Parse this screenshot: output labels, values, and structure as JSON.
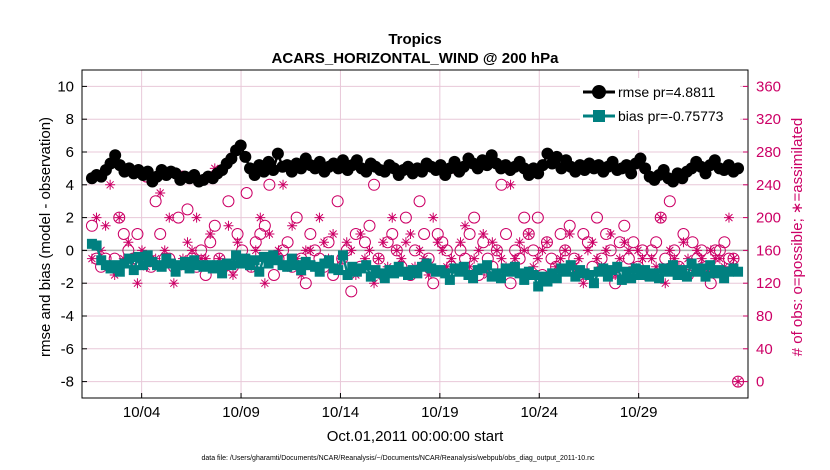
{
  "chart_data": {
    "type": "line",
    "title_line1": "Tropics",
    "title_line2": "ACARS_HORIZONTAL_WIND @ 200 hPa",
    "xlabel": "Oct.01,2011 00:00:00 start",
    "ylabel_left": "rmse and bias (model - observation)",
    "ylabel_right": "# of obs: o=possible; ∗=assimilated",
    "footnote": "data file: /Users/gharamti/Documents/NCAR/Reanalysis/~/Documents/NCAR/Reanalysis/webpub/obs_diag_output_2011-10.nc",
    "x_range_days": [
      0,
      33.5
    ],
    "x_ticks": [
      {
        "day": 3,
        "label": "10/04"
      },
      {
        "day": 8,
        "label": "10/09"
      },
      {
        "day": 13,
        "label": "10/14"
      },
      {
        "day": 18,
        "label": "10/19"
      },
      {
        "day": 23,
        "label": "10/24"
      },
      {
        "day": 28,
        "label": "10/29"
      }
    ],
    "y_left_range": [
      -9,
      11
    ],
    "y_left_ticks": [
      "10",
      "8",
      "6",
      "4",
      "2",
      "0",
      "-2",
      "-4",
      "-6",
      "-8"
    ],
    "y_right_range": [
      -20,
      380
    ],
    "y_right_ticks": [
      "360",
      "320",
      "280",
      "240",
      "200",
      "160",
      "120",
      "80",
      "40",
      "0"
    ],
    "legend": [
      {
        "label": "rmse pr=4.8811"
      },
      {
        "label": "bias pr=-0.75773"
      }
    ],
    "colors": {
      "rmse": "#000000",
      "bias": "#008080",
      "obs": "#cc0066",
      "grid": "#e8c8d8",
      "zero": "#b0b0b0"
    },
    "series": [
      {
        "name": "rmse",
        "values": [
          4.4,
          4.6,
          4.5,
          4.9,
          5.3,
          5.8,
          5.2,
          4.8,
          5.0,
          4.7,
          4.9,
          4.6,
          4.8,
          4.2,
          4.5,
          4.9,
          4.6,
          4.8,
          4.7,
          4.3,
          4.5,
          4.4,
          4.6,
          4.2,
          4.3,
          4.5,
          4.4,
          4.7,
          4.9,
          5.3,
          5.6,
          6.1,
          6.4,
          5.7,
          5.0,
          4.6,
          5.2,
          4.8,
          5.4,
          4.9,
          5.9,
          5.1,
          5.2,
          4.8,
          5.3,
          5.0,
          5.6,
          5.2,
          5.0,
          5.4,
          4.8,
          5.1,
          5.3,
          5.0,
          5.5,
          4.9,
          5.2,
          5.5,
          5.0,
          4.8,
          5.3,
          5.1,
          4.9,
          4.8,
          5.2,
          5.0,
          4.6,
          4.9,
          5.1,
          4.7,
          5.0,
          4.8,
          5.3,
          5.1,
          4.9,
          5.2,
          4.6,
          5.0,
          5.4,
          4.8,
          5.1,
          5.6,
          5.3,
          5.0,
          5.5,
          5.2,
          5.8,
          5.3,
          5.0,
          5.2,
          4.9,
          5.1,
          5.4,
          5.0,
          4.6,
          5.0,
          4.7,
          5.2,
          5.9,
          5.3,
          5.7,
          5.0,
          5.5,
          5.1,
          4.8,
          5.2,
          4.9,
          5.3,
          5.0,
          5.2,
          4.8,
          5.1,
          5.4,
          4.9,
          5.0,
          5.2,
          4.7,
          5.3,
          5.6,
          5.0,
          4.5,
          4.3,
          4.6,
          4.9,
          4.4,
          4.2,
          4.7,
          4.4,
          4.8,
          5.0,
          5.4,
          5.1,
          4.7,
          5.2,
          5.5,
          5.0,
          4.9,
          5.2,
          4.8,
          5.0
        ]
      },
      {
        "name": "bias",
        "values": [
          0.4,
          0.3,
          -0.6,
          -0.9,
          -1.1,
          -0.9,
          -1.3,
          -0.8,
          -0.5,
          -1.2,
          -0.4,
          -0.9,
          -0.3,
          -0.7,
          -0.9,
          -1.0,
          -0.5,
          -0.8,
          -1.3,
          -0.9,
          -0.7,
          -1.1,
          -0.6,
          -0.9,
          -1.0,
          -0.9,
          -1.1,
          -0.9,
          -1.4,
          -0.8,
          -0.9,
          -0.3,
          -0.8,
          -0.5,
          -0.9,
          -0.6,
          -1.3,
          -0.4,
          -0.8,
          -0.3,
          -0.6,
          -0.9,
          -1.0,
          -0.5,
          -0.9,
          -1.2,
          -0.7,
          -0.9,
          -1.0,
          -1.3,
          -0.8,
          -0.6,
          -1.1,
          -1.2,
          -0.3,
          -1.5,
          -1.0,
          -1.3,
          -1.1,
          -0.9,
          -1.6,
          -1.2,
          -1.4,
          -1.7,
          -1.2,
          -1.4,
          -1.0,
          -1.3,
          -1.5,
          -1.2,
          -1.4,
          -1.0,
          -0.8,
          -1.1,
          -1.3,
          -1.2,
          -1.4,
          -1.8,
          -1.1,
          -1.3,
          -1.0,
          -1.5,
          -1.7,
          -1.2,
          -1.1,
          -0.9,
          -1.6,
          -1.4,
          -1.7,
          -1.1,
          -1.3,
          -1.0,
          -1.4,
          -1.8,
          -1.3,
          -1.5,
          -2.2,
          -1.6,
          -1.9,
          -1.4,
          -1.7,
          -1.1,
          -1.3,
          -0.9,
          -1.6,
          -1.2,
          -1.4,
          -1.5,
          -2.0,
          -1.3,
          -1.1,
          -1.6,
          -1.2,
          -1.0,
          -1.8,
          -1.3,
          -1.7,
          -1.1,
          -1.5,
          -1.2,
          -1.6,
          -1.4,
          -1.7,
          -1.1,
          -1.3,
          -0.9,
          -1.5,
          -1.2,
          -1.6,
          -0.8,
          -1.3,
          -1.1,
          -1.6,
          -0.9,
          -1.4,
          -1.2,
          -1.7,
          -1.3,
          -1.1,
          -1.3
        ]
      },
      {
        "name": "obs_possible",
        "values": [
          190,
          150,
          140,
          150,
          140,
          150,
          200,
          180,
          160,
          150,
          180,
          150,
          250,
          140,
          220,
          180,
          150,
          150,
          140,
          200,
          250,
          210,
          150,
          140,
          160,
          130,
          170,
          190,
          150,
          140,
          220,
          140,
          180,
          160,
          230,
          140,
          170,
          180,
          190,
          240,
          130,
          150,
          160,
          170,
          140,
          200,
          150,
          120,
          180,
          160,
          150,
          140,
          170,
          130,
          220,
          150,
          160,
          110,
          180,
          140,
          170,
          190,
          240,
          150,
          130,
          170,
          180,
          160,
          140,
          200,
          130,
          160,
          220,
          180,
          150,
          120,
          180,
          170,
          160,
          140,
          260,
          160,
          150,
          180,
          200,
          130,
          170,
          150,
          140,
          160,
          240,
          180,
          120,
          160,
          150,
          200,
          180,
          160,
          200,
          130,
          170,
          150,
          140,
          180,
          160,
          190,
          150,
          130,
          180,
          170,
          140,
          200,
          150,
          180,
          160,
          120,
          170,
          190,
          150,
          170,
          140,
          160,
          130,
          160,
          170,
          200,
          150,
          220,
          160,
          140,
          180,
          130,
          170,
          150,
          160,
          140,
          120,
          160,
          160,
          170,
          150,
          150,
          0
        ]
      },
      {
        "name": "obs_assimilated",
        "values": [
          150,
          200,
          160,
          190,
          240,
          130,
          200,
          150,
          170,
          150,
          120,
          160,
          140,
          150,
          150,
          230,
          160,
          200,
          120,
          140,
          150,
          170,
          160,
          200,
          150,
          150,
          180,
          260,
          150,
          140,
          190,
          130,
          170,
          150,
          150,
          140,
          160,
          200,
          120,
          180,
          150,
          160,
          240,
          140,
          190,
          150,
          130,
          160,
          160,
          140,
          200,
          170,
          150,
          180,
          140,
          150,
          170,
          160,
          130,
          180,
          150,
          160,
          120,
          150,
          170,
          140,
          200,
          160,
          150,
          170,
          180,
          140,
          160,
          150,
          130,
          200,
          170,
          160,
          140,
          150,
          260,
          170,
          190,
          140,
          150,
          160,
          180,
          130,
          170,
          160,
          150,
          140,
          240,
          150,
          170,
          160,
          180,
          140,
          150,
          160,
          170,
          130,
          140,
          150,
          160,
          180,
          140,
          150,
          120,
          160,
          170,
          150,
          140,
          160,
          180,
          130,
          150,
          170,
          160,
          140,
          160,
          150,
          130,
          150,
          140,
          200,
          120,
          160,
          150,
          140,
          170,
          150,
          140,
          160,
          150,
          130,
          160,
          150,
          150,
          140,
          200,
          150,
          0
        ]
      }
    ]
  }
}
